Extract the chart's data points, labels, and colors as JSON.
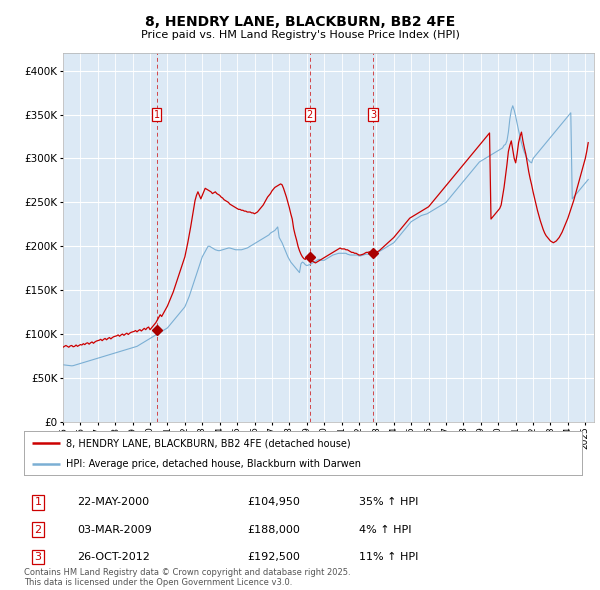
{
  "title": "8, HENDRY LANE, BLACKBURN, BB2 4FE",
  "subtitle": "Price paid vs. HM Land Registry's House Price Index (HPI)",
  "plot_bg_color": "#dce9f5",
  "ylim": [
    0,
    420000
  ],
  "yticks": [
    0,
    50000,
    100000,
    150000,
    200000,
    250000,
    300000,
    350000,
    400000
  ],
  "xlim_start": 1995.0,
  "xlim_end": 2025.5,
  "legend_entries": [
    "8, HENDRY LANE, BLACKBURN, BB2 4FE (detached house)",
    "HPI: Average price, detached house, Blackburn with Darwen"
  ],
  "legend_colors": [
    "#cc0000",
    "#7bafd4"
  ],
  "transactions": [
    {
      "num": 1,
      "date": "22-MAY-2000",
      "price": 104950,
      "hpi_pct": "35% ↑ HPI",
      "year": 2000.38
    },
    {
      "num": 2,
      "date": "03-MAR-2009",
      "price": 188000,
      "hpi_pct": "4% ↑ HPI",
      "year": 2009.17
    },
    {
      "num": 3,
      "date": "26-OCT-2012",
      "price": 192500,
      "hpi_pct": "11% ↑ HPI",
      "year": 2012.81
    }
  ],
  "footer": "Contains HM Land Registry data © Crown copyright and database right 2025.\nThis data is licensed under the Open Government Licence v3.0.",
  "hpi_years": [
    1995.0,
    1995.083,
    1995.167,
    1995.25,
    1995.333,
    1995.417,
    1995.5,
    1995.583,
    1995.667,
    1995.75,
    1995.833,
    1995.917,
    1996.0,
    1996.083,
    1996.167,
    1996.25,
    1996.333,
    1996.417,
    1996.5,
    1996.583,
    1996.667,
    1996.75,
    1996.833,
    1996.917,
    1997.0,
    1997.083,
    1997.167,
    1997.25,
    1997.333,
    1997.417,
    1997.5,
    1997.583,
    1997.667,
    1997.75,
    1997.833,
    1997.917,
    1998.0,
    1998.083,
    1998.167,
    1998.25,
    1998.333,
    1998.417,
    1998.5,
    1998.583,
    1998.667,
    1998.75,
    1998.833,
    1998.917,
    1999.0,
    1999.083,
    1999.167,
    1999.25,
    1999.333,
    1999.417,
    1999.5,
    1999.583,
    1999.667,
    1999.75,
    1999.833,
    1999.917,
    2000.0,
    2000.083,
    2000.167,
    2000.25,
    2000.333,
    2000.417,
    2000.5,
    2000.583,
    2000.667,
    2000.75,
    2000.833,
    2000.917,
    2001.0,
    2001.083,
    2001.167,
    2001.25,
    2001.333,
    2001.417,
    2001.5,
    2001.583,
    2001.667,
    2001.75,
    2001.833,
    2001.917,
    2002.0,
    2002.083,
    2002.167,
    2002.25,
    2002.333,
    2002.417,
    2002.5,
    2002.583,
    2002.667,
    2002.75,
    2002.833,
    2002.917,
    2003.0,
    2003.083,
    2003.167,
    2003.25,
    2003.333,
    2003.417,
    2003.5,
    2003.583,
    2003.667,
    2003.75,
    2003.833,
    2003.917,
    2004.0,
    2004.083,
    2004.167,
    2004.25,
    2004.333,
    2004.417,
    2004.5,
    2004.583,
    2004.667,
    2004.75,
    2004.833,
    2004.917,
    2005.0,
    2005.083,
    2005.167,
    2005.25,
    2005.333,
    2005.417,
    2005.5,
    2005.583,
    2005.667,
    2005.75,
    2005.833,
    2005.917,
    2006.0,
    2006.083,
    2006.167,
    2006.25,
    2006.333,
    2006.417,
    2006.5,
    2006.583,
    2006.667,
    2006.75,
    2006.833,
    2006.917,
    2007.0,
    2007.083,
    2007.167,
    2007.25,
    2007.333,
    2007.417,
    2007.5,
    2007.583,
    2007.667,
    2007.75,
    2007.833,
    2007.917,
    2008.0,
    2008.083,
    2008.167,
    2008.25,
    2008.333,
    2008.417,
    2008.5,
    2008.583,
    2008.667,
    2008.75,
    2008.833,
    2008.917,
    2009.0,
    2009.083,
    2009.167,
    2009.25,
    2009.333,
    2009.417,
    2009.5,
    2009.583,
    2009.667,
    2009.75,
    2009.833,
    2009.917,
    2010.0,
    2010.083,
    2010.167,
    2010.25,
    2010.333,
    2010.417,
    2010.5,
    2010.583,
    2010.667,
    2010.75,
    2010.833,
    2010.917,
    2011.0,
    2011.083,
    2011.167,
    2011.25,
    2011.333,
    2011.417,
    2011.5,
    2011.583,
    2011.667,
    2011.75,
    2011.833,
    2011.917,
    2012.0,
    2012.083,
    2012.167,
    2012.25,
    2012.333,
    2012.417,
    2012.5,
    2012.583,
    2012.667,
    2012.75,
    2012.833,
    2012.917,
    2013.0,
    2013.083,
    2013.167,
    2013.25,
    2013.333,
    2013.417,
    2013.5,
    2013.583,
    2013.667,
    2013.75,
    2013.833,
    2013.917,
    2014.0,
    2014.083,
    2014.167,
    2014.25,
    2014.333,
    2014.417,
    2014.5,
    2014.583,
    2014.667,
    2014.75,
    2014.833,
    2014.917,
    2015.0,
    2015.083,
    2015.167,
    2015.25,
    2015.333,
    2015.417,
    2015.5,
    2015.583,
    2015.667,
    2015.75,
    2015.833,
    2015.917,
    2016.0,
    2016.083,
    2016.167,
    2016.25,
    2016.333,
    2016.417,
    2016.5,
    2016.583,
    2016.667,
    2016.75,
    2016.833,
    2016.917,
    2017.0,
    2017.083,
    2017.167,
    2017.25,
    2017.333,
    2017.417,
    2017.5,
    2017.583,
    2017.667,
    2017.75,
    2017.833,
    2017.917,
    2018.0,
    2018.083,
    2018.167,
    2018.25,
    2018.333,
    2018.417,
    2018.5,
    2018.583,
    2018.667,
    2018.75,
    2018.833,
    2018.917,
    2019.0,
    2019.083,
    2019.167,
    2019.25,
    2019.333,
    2019.417,
    2019.5,
    2019.583,
    2019.667,
    2019.75,
    2019.833,
    2019.917,
    2020.0,
    2020.083,
    2020.167,
    2020.25,
    2020.333,
    2020.417,
    2020.5,
    2020.583,
    2020.667,
    2020.75,
    2020.833,
    2020.917,
    2021.0,
    2021.083,
    2021.167,
    2021.25,
    2021.333,
    2021.417,
    2021.5,
    2021.583,
    2021.667,
    2021.75,
    2021.833,
    2021.917,
    2022.0,
    2022.083,
    2022.167,
    2022.25,
    2022.333,
    2022.417,
    2022.5,
    2022.583,
    2022.667,
    2022.75,
    2022.833,
    2022.917,
    2023.0,
    2023.083,
    2023.167,
    2023.25,
    2023.333,
    2023.417,
    2023.5,
    2023.583,
    2023.667,
    2023.75,
    2023.833,
    2023.917,
    2024.0,
    2024.083,
    2024.167,
    2024.25,
    2024.333,
    2024.417,
    2024.5,
    2024.583,
    2024.667,
    2024.75,
    2024.833,
    2024.917,
    2025.0,
    2025.083,
    2025.167
  ],
  "hpi_values": [
    65000,
    64800,
    64600,
    64400,
    64200,
    64000,
    63800,
    64000,
    64500,
    65000,
    65500,
    66000,
    66500,
    67000,
    67500,
    68000,
    68500,
    69000,
    69500,
    70000,
    70500,
    71000,
    71500,
    72000,
    72500,
    73000,
    73500,
    74000,
    74500,
    75000,
    75500,
    76000,
    76500,
    77000,
    77500,
    78000,
    78500,
    79000,
    79500,
    80000,
    80500,
    81000,
    81500,
    82000,
    82500,
    83000,
    83500,
    84000,
    84500,
    85000,
    85500,
    86000,
    87000,
    88000,
    89000,
    90000,
    91000,
    92000,
    93000,
    94000,
    95000,
    96000,
    97000,
    98000,
    99000,
    100000,
    101000,
    102000,
    103000,
    104000,
    105000,
    106000,
    107000,
    109000,
    111000,
    113000,
    115000,
    117000,
    119000,
    121000,
    123000,
    125000,
    127000,
    129000,
    131000,
    135000,
    139000,
    143000,
    148000,
    153000,
    158000,
    163000,
    168000,
    173000,
    178000,
    183000,
    188000,
    191000,
    194000,
    197000,
    200000,
    200000,
    199000,
    198000,
    197000,
    196000,
    195500,
    195000,
    195000,
    195500,
    196000,
    196500,
    197000,
    197500,
    198000,
    198000,
    197500,
    197000,
    196500,
    196000,
    196000,
    196000,
    196000,
    196000,
    196500,
    197000,
    197500,
    198000,
    199000,
    200000,
    201000,
    202000,
    203000,
    204000,
    205000,
    206000,
    207000,
    208000,
    209000,
    210000,
    211000,
    212000,
    213000,
    215000,
    216000,
    217000,
    218000,
    220000,
    222000,
    210000,
    207000,
    204000,
    200000,
    196000,
    192000,
    188000,
    185000,
    182000,
    180000,
    178000,
    176000,
    174000,
    172000,
    170000,
    180000,
    182000,
    181000,
    179000,
    178000,
    178500,
    179000,
    180000,
    181000,
    182000,
    183000,
    184000,
    185000,
    185000,
    184000,
    184000,
    184000,
    185000,
    186000,
    187000,
    188000,
    189000,
    190000,
    190500,
    191000,
    191500,
    192000,
    192000,
    192000,
    192000,
    192000,
    192000,
    191000,
    190500,
    190000,
    190000,
    190000,
    190000,
    190000,
    190000,
    189000,
    189000,
    189500,
    190000,
    190500,
    191000,
    191000,
    191000,
    191500,
    192000,
    192000,
    192000,
    192000,
    193000,
    194000,
    195000,
    196000,
    197000,
    198000,
    199000,
    200000,
    201000,
    202000,
    203000,
    204000,
    206000,
    208000,
    210000,
    212000,
    214000,
    216000,
    218000,
    220000,
    222000,
    224000,
    226000,
    228000,
    229000,
    230000,
    231000,
    232000,
    233000,
    234000,
    235000,
    235500,
    236000,
    236500,
    237000,
    238000,
    239000,
    240000,
    241000,
    242000,
    243000,
    244000,
    245000,
    246000,
    247000,
    248000,
    249000,
    250000,
    252000,
    254000,
    256000,
    258000,
    260000,
    262000,
    264000,
    266000,
    268000,
    270000,
    272000,
    274000,
    276000,
    278000,
    280000,
    282000,
    284000,
    286000,
    288000,
    290000,
    292000,
    294000,
    296000,
    297000,
    298000,
    299000,
    300000,
    301000,
    302000,
    303000,
    304000,
    305000,
    306000,
    307000,
    308000,
    309000,
    310000,
    311000,
    312000,
    315000,
    316000,
    320000,
    330000,
    345000,
    355000,
    360000,
    355000,
    348000,
    340000,
    332000,
    325000,
    318000,
    312000,
    307000,
    303000,
    300000,
    298000,
    296000,
    295000,
    300000,
    302000,
    304000,
    306000,
    308000,
    310000,
    312000,
    314000,
    316000,
    318000,
    320000,
    322000,
    324000,
    326000,
    328000,
    330000,
    332000,
    334000,
    336000,
    338000,
    340000,
    342000,
    344000,
    346000,
    348000,
    350000,
    352000,
    254000,
    256000,
    258000,
    260000,
    262000,
    264000,
    266000,
    268000,
    270000,
    272000,
    274000,
    276000
  ],
  "prop_years": [
    1995.0,
    1995.083,
    1995.167,
    1995.25,
    1995.333,
    1995.417,
    1995.5,
    1995.583,
    1995.667,
    1995.75,
    1995.833,
    1995.917,
    1996.0,
    1996.083,
    1996.167,
    1996.25,
    1996.333,
    1996.417,
    1996.5,
    1996.583,
    1996.667,
    1996.75,
    1996.833,
    1996.917,
    1997.0,
    1997.083,
    1997.167,
    1997.25,
    1997.333,
    1997.417,
    1997.5,
    1997.583,
    1997.667,
    1997.75,
    1997.833,
    1997.917,
    1998.0,
    1998.083,
    1998.167,
    1998.25,
    1998.333,
    1998.417,
    1998.5,
    1998.583,
    1998.667,
    1998.75,
    1998.833,
    1998.917,
    1999.0,
    1999.083,
    1999.167,
    1999.25,
    1999.333,
    1999.417,
    1999.5,
    1999.583,
    1999.667,
    1999.75,
    1999.833,
    1999.917,
    2000.0,
    2000.083,
    2000.167,
    2000.25,
    2000.333,
    2000.417,
    2000.5,
    2000.583,
    2000.667,
    2000.75,
    2000.833,
    2000.917,
    2001.0,
    2001.083,
    2001.167,
    2001.25,
    2001.333,
    2001.417,
    2001.5,
    2001.583,
    2001.667,
    2001.75,
    2001.833,
    2001.917,
    2002.0,
    2002.083,
    2002.167,
    2002.25,
    2002.333,
    2002.417,
    2002.5,
    2002.583,
    2002.667,
    2002.75,
    2002.833,
    2002.917,
    2003.0,
    2003.083,
    2003.167,
    2003.25,
    2003.333,
    2003.417,
    2003.5,
    2003.583,
    2003.667,
    2003.75,
    2003.833,
    2003.917,
    2004.0,
    2004.083,
    2004.167,
    2004.25,
    2004.333,
    2004.417,
    2004.5,
    2004.583,
    2004.667,
    2004.75,
    2004.833,
    2004.917,
    2005.0,
    2005.083,
    2005.167,
    2005.25,
    2005.333,
    2005.417,
    2005.5,
    2005.583,
    2005.667,
    2005.75,
    2005.833,
    2005.917,
    2006.0,
    2006.083,
    2006.167,
    2006.25,
    2006.333,
    2006.417,
    2006.5,
    2006.583,
    2006.667,
    2006.75,
    2006.833,
    2006.917,
    2007.0,
    2007.083,
    2007.167,
    2007.25,
    2007.333,
    2007.417,
    2007.5,
    2007.583,
    2007.667,
    2007.75,
    2007.833,
    2007.917,
    2008.0,
    2008.083,
    2008.167,
    2008.25,
    2008.333,
    2008.417,
    2008.5,
    2008.583,
    2008.667,
    2008.75,
    2008.833,
    2008.917,
    2009.0,
    2009.083,
    2009.167,
    2009.25,
    2009.333,
    2009.417,
    2009.5,
    2009.583,
    2009.667,
    2009.75,
    2009.833,
    2009.917,
    2010.0,
    2010.083,
    2010.167,
    2010.25,
    2010.333,
    2010.417,
    2010.5,
    2010.583,
    2010.667,
    2010.75,
    2010.833,
    2010.917,
    2011.0,
    2011.083,
    2011.167,
    2011.25,
    2011.333,
    2011.417,
    2011.5,
    2011.583,
    2011.667,
    2011.75,
    2011.833,
    2011.917,
    2012.0,
    2012.083,
    2012.167,
    2012.25,
    2012.333,
    2012.417,
    2012.5,
    2012.583,
    2012.667,
    2012.75,
    2012.833,
    2012.917,
    2013.0,
    2013.083,
    2013.167,
    2013.25,
    2013.333,
    2013.417,
    2013.5,
    2013.583,
    2013.667,
    2013.75,
    2013.833,
    2013.917,
    2014.0,
    2014.083,
    2014.167,
    2014.25,
    2014.333,
    2014.417,
    2014.5,
    2014.583,
    2014.667,
    2014.75,
    2014.833,
    2014.917,
    2015.0,
    2015.083,
    2015.167,
    2015.25,
    2015.333,
    2015.417,
    2015.5,
    2015.583,
    2015.667,
    2015.75,
    2015.833,
    2015.917,
    2016.0,
    2016.083,
    2016.167,
    2016.25,
    2016.333,
    2016.417,
    2016.5,
    2016.583,
    2016.667,
    2016.75,
    2016.833,
    2016.917,
    2017.0,
    2017.083,
    2017.167,
    2017.25,
    2017.333,
    2017.417,
    2017.5,
    2017.583,
    2017.667,
    2017.75,
    2017.833,
    2017.917,
    2018.0,
    2018.083,
    2018.167,
    2018.25,
    2018.333,
    2018.417,
    2018.5,
    2018.583,
    2018.667,
    2018.75,
    2018.833,
    2018.917,
    2019.0,
    2019.083,
    2019.167,
    2019.25,
    2019.333,
    2019.417,
    2019.5,
    2019.583,
    2019.667,
    2019.75,
    2019.833,
    2019.917,
    2020.0,
    2020.083,
    2020.167,
    2020.25,
    2020.333,
    2020.417,
    2020.5,
    2020.583,
    2020.667,
    2020.75,
    2020.833,
    2020.917,
    2021.0,
    2021.083,
    2021.167,
    2021.25,
    2021.333,
    2021.417,
    2021.5,
    2021.583,
    2021.667,
    2021.75,
    2021.833,
    2021.917,
    2022.0,
    2022.083,
    2022.167,
    2022.25,
    2022.333,
    2022.417,
    2022.5,
    2022.583,
    2022.667,
    2022.75,
    2022.833,
    2022.917,
    2023.0,
    2023.083,
    2023.167,
    2023.25,
    2023.333,
    2023.417,
    2023.5,
    2023.583,
    2023.667,
    2023.75,
    2023.833,
    2023.917,
    2024.0,
    2024.083,
    2024.167,
    2024.25,
    2024.333,
    2024.417,
    2024.5,
    2024.583,
    2024.667,
    2024.75,
    2024.833,
    2024.917,
    2025.0,
    2025.083,
    2025.167
  ],
  "prop_values": [
    85000,
    86000,
    87000,
    86000,
    85000,
    86500,
    87000,
    85500,
    86000,
    87500,
    86000,
    87000,
    88000,
    87500,
    89000,
    88000,
    89500,
    90000,
    88500,
    90000,
    91000,
    89500,
    91000,
    92000,
    92500,
    93000,
    94000,
    92500,
    94000,
    95000,
    93500,
    95000,
    96000,
    94500,
    96000,
    97000,
    97500,
    98000,
    99000,
    97500,
    99000,
    100000,
    98500,
    100000,
    101000,
    99500,
    101000,
    102000,
    102500,
    103000,
    104000,
    102500,
    104000,
    105000,
    103500,
    105000,
    106500,
    105000,
    107000,
    108000,
    104950,
    107000,
    109000,
    111000,
    113000,
    116000,
    119000,
    122000,
    120000,
    123000,
    126000,
    129000,
    132000,
    136000,
    140000,
    144000,
    148000,
    153000,
    158000,
    163000,
    168000,
    173000,
    178000,
    183000,
    188000,
    196000,
    204000,
    213000,
    222000,
    232000,
    242000,
    252000,
    258000,
    262000,
    258000,
    254000,
    258000,
    262000,
    266000,
    265000,
    264000,
    263000,
    262000,
    260000,
    261000,
    262000,
    260000,
    259000,
    258000,
    256000,
    255000,
    253000,
    252000,
    251000,
    250000,
    248000,
    247000,
    246000,
    245000,
    244000,
    243000,
    242000,
    242000,
    241000,
    241000,
    240000,
    240000,
    239000,
    239000,
    239000,
    238000,
    238000,
    237000,
    238000,
    239000,
    241000,
    243000,
    245000,
    247000,
    250000,
    253000,
    256000,
    258000,
    260000,
    263000,
    265000,
    267000,
    268000,
    269000,
    270000,
    271000,
    270000,
    266000,
    261000,
    256000,
    250000,
    244000,
    237000,
    231000,
    220000,
    213000,
    207000,
    200000,
    195000,
    191000,
    188000,
    186000,
    185000,
    188000,
    186000,
    185000,
    184000,
    183000,
    182000,
    181000,
    182000,
    183000,
    184000,
    185000,
    186000,
    187000,
    188000,
    189000,
    190000,
    191000,
    192000,
    193000,
    194000,
    195000,
    196000,
    197000,
    198000,
    197000,
    197000,
    197000,
    196000,
    196000,
    195000,
    194000,
    193000,
    193000,
    192000,
    192000,
    191000,
    190000,
    190000,
    190500,
    191000,
    192000,
    193000,
    193000,
    193500,
    193500,
    193500,
    193500,
    193500,
    193500,
    194000,
    195000,
    196500,
    198000,
    199500,
    201000,
    202500,
    204000,
    205500,
    207000,
    208500,
    210000,
    212000,
    214000,
    216000,
    218000,
    220000,
    222000,
    224000,
    226000,
    228000,
    230000,
    232000,
    233000,
    234000,
    235000,
    236000,
    237000,
    238000,
    239000,
    240000,
    241000,
    242000,
    243000,
    244000,
    245000,
    247000,
    249000,
    251000,
    253000,
    255000,
    257000,
    259000,
    261000,
    263000,
    265000,
    267000,
    269000,
    271000,
    273000,
    275000,
    277000,
    279000,
    281000,
    283000,
    285000,
    287000,
    289000,
    291000,
    293000,
    295000,
    297000,
    299000,
    301000,
    303000,
    305000,
    307000,
    309000,
    311000,
    313000,
    315000,
    317000,
    319000,
    321000,
    323000,
    325000,
    327000,
    329000,
    231000,
    233000,
    235000,
    237000,
    239000,
    241000,
    243000,
    247000,
    257000,
    267000,
    280000,
    293000,
    308000,
    315000,
    320000,
    310000,
    300000,
    295000,
    305000,
    318000,
    325000,
    330000,
    320000,
    312000,
    305000,
    295000,
    285000,
    277000,
    270000,
    262000,
    255000,
    248000,
    241000,
    235000,
    229000,
    224000,
    219000,
    215000,
    212000,
    210000,
    208000,
    206000,
    205000,
    204000,
    205000,
    206000,
    208000,
    210000,
    213000,
    216000,
    220000,
    224000,
    228000,
    232000,
    237000,
    242000,
    247000,
    252000,
    258000,
    264000,
    270000,
    276000,
    282000,
    288000,
    294000,
    300000,
    308000,
    318000
  ],
  "xtick_years": [
    1995,
    1996,
    1997,
    1998,
    1999,
    2000,
    2001,
    2002,
    2003,
    2004,
    2005,
    2006,
    2007,
    2008,
    2009,
    2010,
    2011,
    2012,
    2013,
    2014,
    2015,
    2016,
    2017,
    2018,
    2019,
    2020,
    2021,
    2022,
    2023,
    2024,
    2025
  ]
}
